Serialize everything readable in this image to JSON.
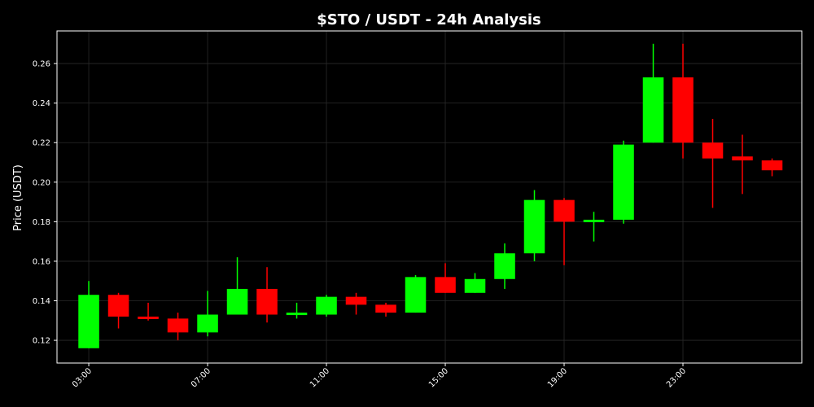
{
  "chart_data": {
    "type": "candlestick",
    "title": "$STO / USDT - 24h Analysis",
    "xlabel": "",
    "ylabel": "Price (USDT)",
    "ylim": [
      0.1085,
      0.2765
    ],
    "yticks": [
      0.12,
      0.14,
      0.16,
      0.18,
      0.2,
      0.22,
      0.24,
      0.26
    ],
    "ytick_labels": [
      "0.12",
      "0.14",
      "0.16",
      "0.18",
      "0.20",
      "0.22",
      "0.24",
      "0.26"
    ],
    "xticks": [
      3,
      7,
      11,
      15,
      19,
      23
    ],
    "xtick_labels": [
      "03:00",
      "07:00",
      "11:00",
      "15:00",
      "19:00",
      "23:00"
    ],
    "xlim": [
      1.93,
      27.0
    ],
    "grid": true,
    "colors": {
      "up": "#00ff00",
      "down": "#ff0000",
      "background": "#000000",
      "text": "#ffffff",
      "grid": "#2a2a2a"
    },
    "candles": [
      {
        "hour": 3,
        "open": 0.116,
        "high": 0.15,
        "low": 0.116,
        "close": 0.143
      },
      {
        "hour": 4,
        "open": 0.143,
        "high": 0.144,
        "low": 0.126,
        "close": 0.132
      },
      {
        "hour": 5,
        "open": 0.132,
        "high": 0.139,
        "low": 0.13,
        "close": 0.131
      },
      {
        "hour": 6,
        "open": 0.131,
        "high": 0.134,
        "low": 0.12,
        "close": 0.124
      },
      {
        "hour": 7,
        "open": 0.124,
        "high": 0.145,
        "low": 0.122,
        "close": 0.133
      },
      {
        "hour": 8,
        "open": 0.133,
        "high": 0.162,
        "low": 0.133,
        "close": 0.146
      },
      {
        "hour": 9,
        "open": 0.146,
        "high": 0.157,
        "low": 0.129,
        "close": 0.133
      },
      {
        "hour": 10,
        "open": 0.133,
        "high": 0.139,
        "low": 0.131,
        "close": 0.134
      },
      {
        "hour": 11,
        "open": 0.133,
        "high": 0.143,
        "low": 0.132,
        "close": 0.142
      },
      {
        "hour": 12,
        "open": 0.142,
        "high": 0.144,
        "low": 0.133,
        "close": 0.138
      },
      {
        "hour": 13,
        "open": 0.138,
        "high": 0.139,
        "low": 0.132,
        "close": 0.134
      },
      {
        "hour": 14,
        "open": 0.134,
        "high": 0.153,
        "low": 0.134,
        "close": 0.152
      },
      {
        "hour": 15,
        "open": 0.152,
        "high": 0.159,
        "low": 0.144,
        "close": 0.144
      },
      {
        "hour": 16,
        "open": 0.144,
        "high": 0.154,
        "low": 0.144,
        "close": 0.151
      },
      {
        "hour": 17,
        "open": 0.151,
        "high": 0.169,
        "low": 0.146,
        "close": 0.164
      },
      {
        "hour": 18,
        "open": 0.164,
        "high": 0.196,
        "low": 0.16,
        "close": 0.191
      },
      {
        "hour": 19,
        "open": 0.191,
        "high": 0.192,
        "low": 0.158,
        "close": 0.18
      },
      {
        "hour": 20,
        "open": 0.18,
        "high": 0.185,
        "low": 0.17,
        "close": 0.181
      },
      {
        "hour": 21,
        "open": 0.181,
        "high": 0.221,
        "low": 0.179,
        "close": 0.219
      },
      {
        "hour": 22,
        "open": 0.22,
        "high": 0.27,
        "low": 0.22,
        "close": 0.253
      },
      {
        "hour": 23,
        "open": 0.253,
        "high": 0.27,
        "low": 0.212,
        "close": 0.22
      },
      {
        "hour": 24,
        "open": 0.22,
        "high": 0.232,
        "low": 0.187,
        "close": 0.212
      },
      {
        "hour": 25,
        "open": 0.213,
        "high": 0.224,
        "low": 0.194,
        "close": 0.211
      },
      {
        "hour": 26,
        "open": 0.211,
        "high": 0.212,
        "low": 0.203,
        "close": 0.206
      }
    ]
  }
}
